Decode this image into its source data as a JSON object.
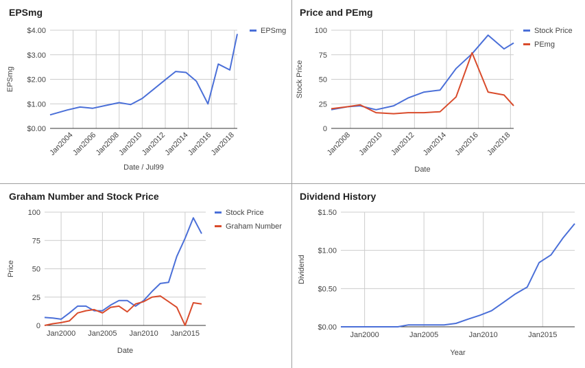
{
  "chart_data": [
    {
      "type": "line",
      "title": "EPSmg",
      "xlabel": "Date / Jul99",
      "ylabel": "EPSmg",
      "xlim": [
        2002.0,
        2018.25
      ],
      "ylim": [
        0,
        4
      ],
      "yticks": [
        0,
        1,
        2,
        3,
        4
      ],
      "ytick_labels": [
        "$0.00",
        "$1.00",
        "$2.00",
        "$3.00",
        "$4.00"
      ],
      "xticks": [
        2004,
        2006,
        2008,
        2010,
        2012,
        2014,
        2016,
        2018
      ],
      "xtick_labels": [
        "Jan2004",
        "Jan2006",
        "Jan2008",
        "Jan2010",
        "Jan2012",
        "Jan2014",
        "Jan2016",
        "Jan2018"
      ],
      "xtick_rotated": true,
      "grid": true,
      "legend": "right",
      "series": [
        {
          "name": "EPSmg",
          "color": "#4a6fd8",
          "x": [
            2002.0,
            2003.5,
            2004.6,
            2005.7,
            2007.0,
            2008.0,
            2009.0,
            2010.0,
            2011.0,
            2012.0,
            2012.9,
            2013.8,
            2014.7,
            2015.7,
            2016.6,
            2017.6,
            2018.25
          ],
          "y": [
            0.55,
            0.75,
            0.87,
            0.82,
            0.95,
            1.05,
            0.97,
            1.22,
            1.6,
            1.98,
            2.32,
            2.28,
            1.92,
            1.0,
            2.62,
            2.38,
            3.85
          ]
        }
      ]
    },
    {
      "type": "line",
      "title": "Price and PEmg",
      "xlabel": "Date",
      "ylabel": "Stock Price",
      "xlim": [
        2006.8,
        2018.2
      ],
      "ylim": [
        0,
        100
      ],
      "yticks": [
        0,
        25,
        50,
        75,
        100
      ],
      "ytick_labels": [
        "0",
        "25",
        "50",
        "75",
        "100"
      ],
      "xticks": [
        2008,
        2010,
        2012,
        2014,
        2016,
        2018
      ],
      "xtick_labels": [
        "Jan2008",
        "Jan2010",
        "Jan2012",
        "Jan2014",
        "Jan2016",
        "Jan2018"
      ],
      "xtick_rotated": true,
      "grid": true,
      "legend": "right",
      "series": [
        {
          "name": "Stock Price",
          "color": "#4a6fd8",
          "x": [
            2006.8,
            2007.8,
            2008.6,
            2009.6,
            2010.7,
            2011.6,
            2012.6,
            2013.6,
            2014.6,
            2015.6,
            2016.6,
            2017.6,
            2018.2
          ],
          "y": [
            19,
            22,
            23,
            19,
            23,
            31,
            37,
            39,
            61,
            76,
            95,
            81,
            87
          ]
        },
        {
          "name": "PEmg",
          "color": "#d94b2b",
          "x": [
            2006.8,
            2007.8,
            2008.6,
            2009.6,
            2010.7,
            2011.6,
            2012.6,
            2013.6,
            2014.6,
            2015.6,
            2016.6,
            2017.6,
            2018.2
          ],
          "y": [
            20,
            22,
            24,
            16,
            15,
            16,
            16,
            17,
            32,
            77,
            37,
            34,
            23
          ]
        }
      ]
    },
    {
      "type": "line",
      "title": "Graham Number and Stock Price",
      "xlabel": "Date",
      "ylabel": "Price",
      "xlim": [
        1998.0,
        2017.5
      ],
      "ylim": [
        0,
        100
      ],
      "yticks": [
        0,
        25,
        50,
        75,
        100
      ],
      "ytick_labels": [
        "0",
        "25",
        "50",
        "75",
        "100"
      ],
      "xticks": [
        2000,
        2005,
        2010,
        2015
      ],
      "xtick_labels": [
        "Jan2000",
        "Jan2005",
        "Jan2010",
        "Jan2015"
      ],
      "xtick_rotated": false,
      "grid": true,
      "legend": "right",
      "series": [
        {
          "name": "Stock Price",
          "color": "#4a6fd8",
          "x": [
            1998.0,
            1999.0,
            2000.0,
            2001.0,
            2002.0,
            2003.0,
            2004.0,
            2005.0,
            2006.0,
            2007.0,
            2008.0,
            2009.0,
            2010.0,
            2011.0,
            2012.0,
            2013.0,
            2014.0,
            2015.0,
            2016.0,
            2017.0
          ],
          "y": [
            7,
            6.5,
            5.5,
            11,
            17,
            17,
            13,
            13,
            18,
            22,
            22,
            17,
            22,
            30,
            37,
            38,
            61,
            77,
            95,
            81
          ]
        },
        {
          "name": "Graham Number",
          "color": "#d94b2b",
          "x": [
            1998.0,
            1999.0,
            2000.0,
            2001.0,
            2002.0,
            2003.0,
            2004.0,
            2005.0,
            2006.0,
            2007.0,
            2008.0,
            2009.0,
            2010.0,
            2011.0,
            2012.0,
            2013.0,
            2014.0,
            2015.0,
            2016.0,
            2017.0
          ],
          "y": [
            0,
            1.5,
            2.5,
            4,
            11,
            13,
            14,
            11,
            16,
            17,
            12,
            19,
            21,
            25,
            26,
            21,
            16,
            0,
            20,
            19
          ]
        }
      ]
    },
    {
      "type": "line",
      "title": "Dividend History",
      "xlabel": "Year",
      "ylabel": "Dividend",
      "xlim": [
        1998.0,
        2017.7
      ],
      "ylim": [
        0,
        1.5
      ],
      "yticks": [
        0,
        0.5,
        1.0,
        1.5
      ],
      "ytick_labels": [
        "$0.00",
        "$0.50",
        "$1.00",
        "$1.50"
      ],
      "xticks": [
        2000,
        2005,
        2010,
        2015
      ],
      "xtick_labels": [
        "Jan2000",
        "Jan2005",
        "Jan2010",
        "Jan2015"
      ],
      "xtick_rotated": false,
      "grid": true,
      "legend": "none",
      "series": [
        {
          "name": "",
          "color": "#4a6fd8",
          "x": [
            1998.0,
            2002.8,
            2003.7,
            2006.7,
            2007.7,
            2008.7,
            2009.7,
            2010.7,
            2011.7,
            2012.7,
            2013.7,
            2014.7,
            2015.7,
            2016.7,
            2017.7
          ],
          "y": [
            0.0,
            0.0,
            0.025,
            0.025,
            0.045,
            0.1,
            0.15,
            0.21,
            0.32,
            0.43,
            0.52,
            0.84,
            0.94,
            1.16,
            1.35
          ]
        }
      ]
    }
  ]
}
